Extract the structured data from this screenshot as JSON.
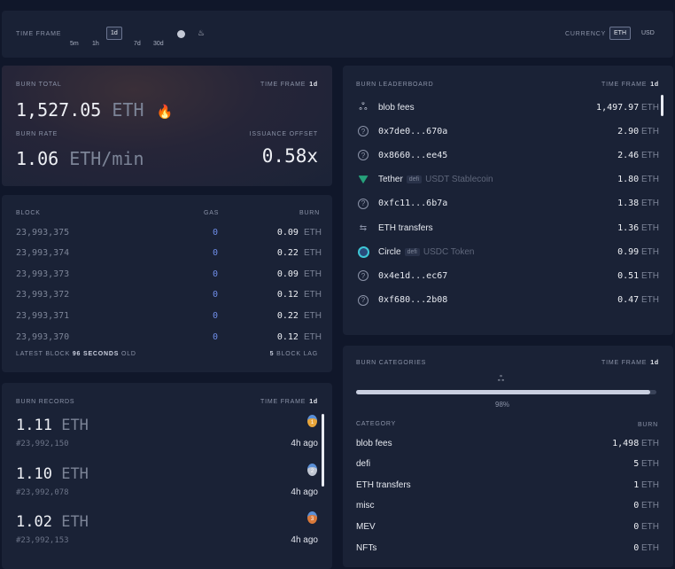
{
  "topbar": {
    "time_frame_label": "TIME FRAME",
    "time_frames": [
      "5m",
      "1h",
      "1d",
      "7d",
      "30d"
    ],
    "selected_time_frame": "1d",
    "extra_icons": [
      "merge-icon",
      "since-burn-icon"
    ],
    "currency_label": "CURRENCY",
    "currencies": [
      "ETH",
      "USD"
    ],
    "selected_currency": "ETH"
  },
  "burn_total": {
    "label": "BURN TOTAL",
    "tf_label": "TIME FRAME",
    "tf_value": "1d",
    "value": "1,527.05",
    "unit": "ETH",
    "icon": "fire-icon",
    "rate_label": "BURN RATE",
    "rate_value": "1.06",
    "rate_unit": "ETH/min",
    "offset_label": "ISSUANCE OFFSET",
    "offset_value": "0.58x"
  },
  "blocks": {
    "headers": [
      "BLOCK",
      "GAS",
      "BURN"
    ],
    "rows": [
      {
        "block": "23,993,375",
        "gas": "0",
        "burn": "0.09",
        "unit": "ETH"
      },
      {
        "block": "23,993,374",
        "gas": "0",
        "burn": "0.22",
        "unit": "ETH"
      },
      {
        "block": "23,993,373",
        "gas": "0",
        "burn": "0.09",
        "unit": "ETH"
      },
      {
        "block": "23,993,372",
        "gas": "0",
        "burn": "0.12",
        "unit": "ETH"
      },
      {
        "block": "23,993,371",
        "gas": "0",
        "burn": "0.22",
        "unit": "ETH"
      },
      {
        "block": "23,993,370",
        "gas": "0",
        "burn": "0.12",
        "unit": "ETH"
      }
    ],
    "footer_left_a": "LATEST BLOCK",
    "footer_left_b": "96",
    "footer_left_c": "SECONDS",
    "footer_left_d": "OLD",
    "footer_right_a": "5",
    "footer_right_b": "BLOCK LAG"
  },
  "records": {
    "label": "BURN RECORDS",
    "tf_label": "TIME FRAME",
    "tf_value": "1d",
    "items": [
      {
        "value": "1.11",
        "unit": "ETH",
        "block": "#23,992,150",
        "age": "4h ago",
        "medal": "1"
      },
      {
        "value": "1.10",
        "unit": "ETH",
        "block": "#23,992,078",
        "age": "4h ago",
        "medal": "2"
      },
      {
        "value": "1.02",
        "unit": "ETH",
        "block": "#23,992,153",
        "age": "4h ago",
        "medal": "3"
      }
    ]
  },
  "leaderboard": {
    "label": "BURN LEADERBOARD",
    "tf_label": "TIME FRAME",
    "tf_value": "1d",
    "items": [
      {
        "name": "blob fees",
        "icon": "blob-icon",
        "value": "1,497.97",
        "unit": "ETH"
      },
      {
        "name": "0x7de0...670a",
        "icon": "question-icon",
        "value": "2.90",
        "unit": "ETH"
      },
      {
        "name": "0x8660...ee45",
        "icon": "question-icon",
        "value": "2.46",
        "unit": "ETH"
      },
      {
        "name": "Tether",
        "tag": "defi",
        "detail": "USDT Stablecoin",
        "icon": "tether-icon",
        "value": "1.80",
        "unit": "ETH"
      },
      {
        "name": "0xfc11...6b7a",
        "icon": "question-icon",
        "value": "1.38",
        "unit": "ETH"
      },
      {
        "name": "ETH transfers",
        "icon": "transfer-icon",
        "value": "1.36",
        "unit": "ETH"
      },
      {
        "name": "Circle",
        "tag": "defi",
        "detail": "USDC Token",
        "icon": "circle-icon",
        "value": "0.99",
        "unit": "ETH"
      },
      {
        "name": "0x4e1d...ec67",
        "icon": "question-icon",
        "value": "0.51",
        "unit": "ETH"
      },
      {
        "name": "0xf680...2b08",
        "icon": "question-icon",
        "value": "0.47",
        "unit": "ETH"
      }
    ]
  },
  "categories": {
    "label": "BURN CATEGORIES",
    "tf_label": "TIME FRAME",
    "tf_value": "1d",
    "bar_percent": 98,
    "bar_label": "98%",
    "headers": [
      "CATEGORY",
      "BURN"
    ],
    "rows": [
      {
        "name": "blob fees",
        "value": "1,498",
        "unit": "ETH"
      },
      {
        "name": "defi",
        "value": "5",
        "unit": "ETH"
      },
      {
        "name": "ETH transfers",
        "value": "1",
        "unit": "ETH"
      },
      {
        "name": "misc",
        "value": "0",
        "unit": "ETH"
      },
      {
        "name": "MEV",
        "value": "0",
        "unit": "ETH"
      },
      {
        "name": "NFTs",
        "value": "0",
        "unit": "ETH"
      }
    ]
  },
  "colors": {
    "gas": "#6f8de8",
    "accent_bar": "#c9cfe0"
  }
}
